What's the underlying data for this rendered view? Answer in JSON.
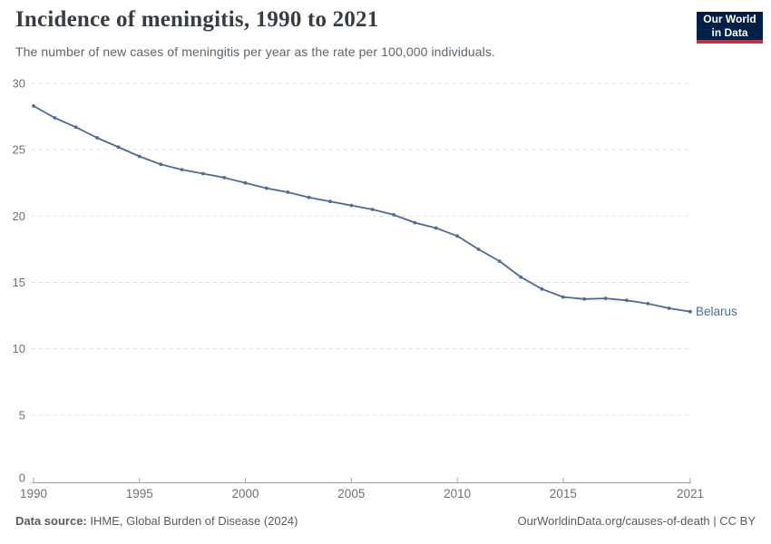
{
  "header": {
    "title": "Incidence of meningitis, 1990 to 2021",
    "subtitle": "The number of new cases of meningitis per year as the rate per 100,000 individuals."
  },
  "logo": {
    "line1": "Our World",
    "line2": "in Data",
    "bg_color": "#002147",
    "stripe_color": "#C0333E",
    "text_color": "#ffffff"
  },
  "chart_data": {
    "type": "line",
    "title": "Incidence of meningitis, 1990 to 2021",
    "subtitle": "The number of new cases of meningitis per year as the rate per 100,000 individuals.",
    "xlabel": "",
    "ylabel": "",
    "xlim": [
      1990,
      2021
    ],
    "ylim": [
      0,
      30
    ],
    "xticks": [
      1990,
      1995,
      2000,
      2005,
      2010,
      2015,
      2021
    ],
    "yticks": [
      0,
      5,
      10,
      15,
      20,
      25,
      30
    ],
    "grid": "horizontal-dashed",
    "legend_position": "end-of-line-label",
    "line_color": "#4C6A9C",
    "grid_color": "#dcdcdc",
    "axis_color": "#a3a3a3",
    "axis_label_color": "#6e7075",
    "series": [
      {
        "name": "Belarus",
        "x": [
          1990,
          1991,
          1992,
          1993,
          1994,
          1995,
          1996,
          1997,
          1998,
          1999,
          2000,
          2001,
          2002,
          2003,
          2004,
          2005,
          2006,
          2007,
          2008,
          2009,
          2010,
          2011,
          2012,
          2013,
          2014,
          2015,
          2016,
          2017,
          2018,
          2019,
          2020,
          2021
        ],
        "values": [
          28.3,
          27.4,
          26.7,
          25.9,
          25.2,
          24.5,
          23.9,
          23.5,
          23.2,
          22.9,
          22.5,
          22.1,
          21.8,
          21.4,
          21.1,
          20.8,
          20.5,
          20.1,
          19.5,
          19.1,
          18.5,
          17.5,
          16.6,
          15.4,
          14.5,
          13.9,
          13.75,
          13.8,
          13.65,
          13.4,
          13.05,
          12.8
        ]
      }
    ]
  },
  "footer": {
    "source_label": "Data source:",
    "source_text": " IHME, Global Burden of Disease (2024)",
    "credit": "OurWorldinData.org/causes-of-death | CC BY"
  }
}
